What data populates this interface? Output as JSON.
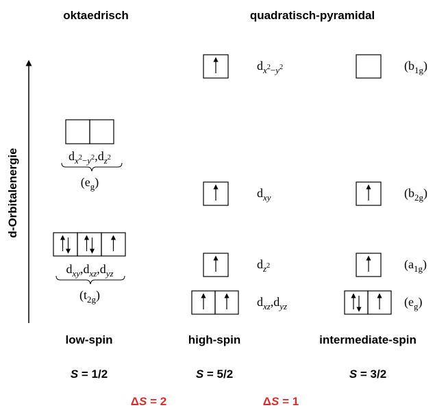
{
  "header": {
    "left": "oktaedrisch",
    "right": "quadratisch-pyramidal"
  },
  "axis_label": "d-Orbitalenergie",
  "octahedral": {
    "levels": [
      {
        "label": [
          {
            "t": "d"
          },
          {
            "t": "x",
            "s": "sub-i"
          },
          {
            "t": "2",
            "s": "sup"
          },
          {
            "t": "−",
            "s": "sub"
          },
          {
            "t": "y",
            "s": "sub-i"
          },
          {
            "t": "2",
            "s": "sup"
          },
          {
            "t": ",d"
          },
          {
            "t": "z",
            "s": "sub-i"
          },
          {
            "t": "2",
            "s": "sup"
          }
        ],
        "symmetry": [
          {
            "t": "(e"
          },
          {
            "t": "g",
            "s": "sub"
          },
          {
            "t": ")"
          }
        ],
        "boxes": [
          "empty",
          "empty"
        ]
      },
      {
        "label": [
          {
            "t": "d"
          },
          {
            "t": "xy",
            "s": "sub-i"
          },
          {
            "t": ",d"
          },
          {
            "t": "xz",
            "s": "sub-i"
          },
          {
            "t": ",d"
          },
          {
            "t": "yz",
            "s": "sub-i"
          }
        ],
        "symmetry": [
          {
            "t": "(t"
          },
          {
            "t": "2g",
            "s": "sub"
          },
          {
            "t": ")"
          }
        ],
        "boxes": [
          "updown",
          "updown",
          "up"
        ]
      }
    ]
  },
  "high_spin": {
    "levels": [
      {
        "label": [
          {
            "t": "d"
          },
          {
            "t": "x",
            "s": "sub-i"
          },
          {
            "t": "2",
            "s": "sup"
          },
          {
            "t": "−",
            "s": "sub"
          },
          {
            "t": "y",
            "s": "sub-i"
          },
          {
            "t": "2",
            "s": "sup"
          }
        ],
        "boxes": [
          "up"
        ]
      },
      {
        "label": [
          {
            "t": "d"
          },
          {
            "t": "xy",
            "s": "sub-i"
          }
        ],
        "boxes": [
          "up"
        ]
      },
      {
        "label": [
          {
            "t": "d"
          },
          {
            "t": "z",
            "s": "sub-i"
          },
          {
            "t": "2",
            "s": "sup"
          }
        ],
        "boxes": [
          "up"
        ]
      },
      {
        "label": [
          {
            "t": "d"
          },
          {
            "t": "xz",
            "s": "sub-i"
          },
          {
            "t": ",d"
          },
          {
            "t": "yz",
            "s": "sub-i"
          }
        ],
        "boxes": [
          "up",
          "up"
        ]
      }
    ]
  },
  "intermediate_spin": {
    "levels": [
      {
        "symmetry": [
          {
            "t": "(b"
          },
          {
            "t": "1g",
            "s": "sub"
          },
          {
            "t": ")"
          }
        ],
        "boxes": [
          "empty"
        ]
      },
      {
        "symmetry": [
          {
            "t": "(b"
          },
          {
            "t": "2g",
            "s": "sub"
          },
          {
            "t": ")"
          }
        ],
        "boxes": [
          "up"
        ]
      },
      {
        "symmetry": [
          {
            "t": "(a"
          },
          {
            "t": "1g",
            "s": "sub"
          },
          {
            "t": ")"
          }
        ],
        "boxes": [
          "up"
        ]
      },
      {
        "symmetry": [
          {
            "t": "(e"
          },
          {
            "t": "g",
            "s": "sub"
          },
          {
            "t": ")"
          }
        ],
        "boxes": [
          "updown",
          "up"
        ]
      }
    ]
  },
  "columns": [
    {
      "name": "low-spin",
      "spin": [
        {
          "t": "S",
          "s": "i"
        },
        {
          "t": " = 1/2"
        }
      ]
    },
    {
      "name": "high-spin",
      "spin": [
        {
          "t": "S",
          "s": "i"
        },
        {
          "t": " = 5/2"
        }
      ]
    },
    {
      "name": "intermediate-spin",
      "spin": [
        {
          "t": "S",
          "s": "i"
        },
        {
          "t": " = 3/2"
        }
      ]
    }
  ],
  "deltas": [
    [
      {
        "t": "Δ"
      },
      {
        "t": "S",
        "s": "i"
      },
      {
        "t": " = 2"
      }
    ],
    [
      {
        "t": "Δ"
      },
      {
        "t": "S",
        "s": "i"
      },
      {
        "t": " = 1"
      }
    ]
  ]
}
